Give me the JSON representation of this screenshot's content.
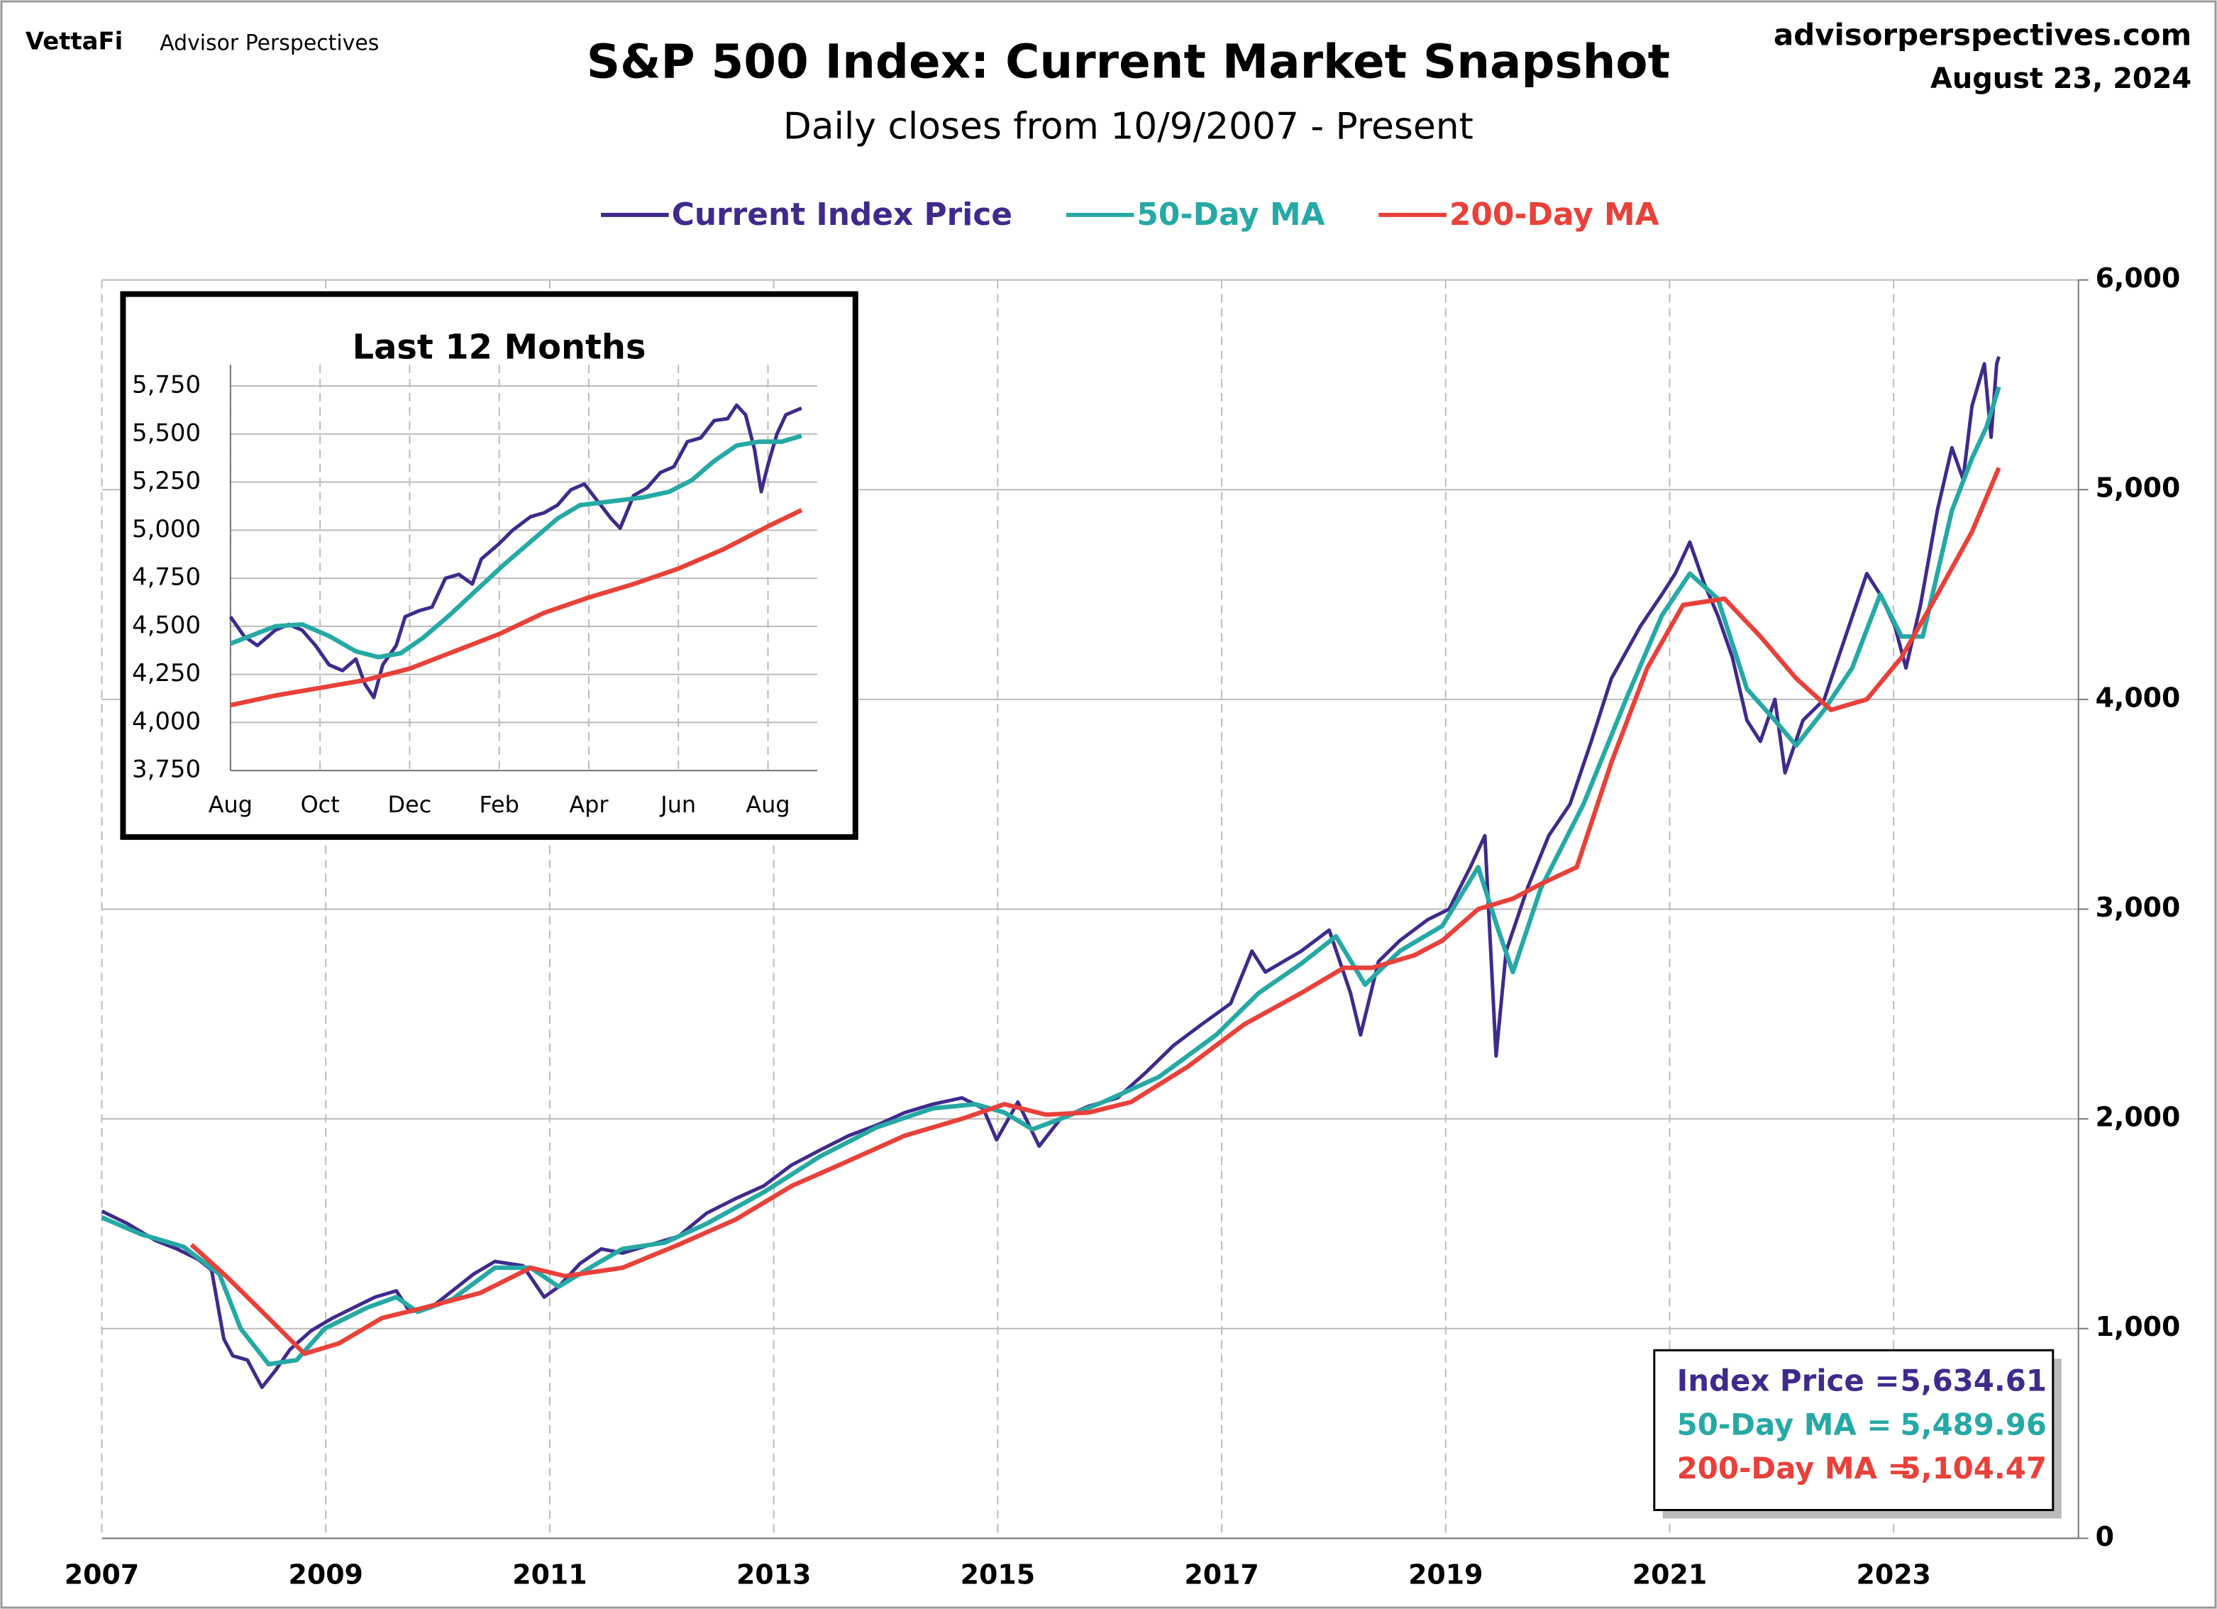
{
  "header": {
    "brand": "VettaFi",
    "brand_sub": "Advisor Perspectives",
    "site": "advisorperspectives.com",
    "date": "August 23, 2024"
  },
  "chart_data": [
    {
      "type": "line",
      "title": "S&P 500 Index: Current Market Snapshot",
      "subtitle": "Daily closes from 10/9/2007 - Present",
      "xlim": [
        2007,
        2024.65
      ],
      "xticks": [
        2007,
        2009,
        2011,
        2013,
        2015,
        2017,
        2019,
        2021,
        2023
      ],
      "ylim": [
        0,
        6000
      ],
      "yticks": [
        0,
        {
          "value": 1000,
          "label": "1,000"
        },
        {
          "value": 2000,
          "label": "2,000"
        },
        {
          "value": 3000,
          "label": "3,000"
        },
        {
          "value": 4000,
          "label": "4,000"
        },
        {
          "value": 5000,
          "label": "5,000"
        },
        {
          "value": 6000,
          "label": "6,000"
        }
      ],
      "grid": true,
      "legend": "top",
      "series": [
        {
          "name": "Current Index Price",
          "color": "#3f2a8c",
          "x": [
            2007.0,
            2007.23,
            2007.48,
            2007.67,
            2007.86,
            2007.98,
            2008.09,
            2008.17,
            2008.3,
            2008.43,
            2008.55,
            2008.68,
            2008.87,
            2009.06,
            2009.25,
            2009.44,
            2009.63,
            2009.75,
            2009.94,
            2010.13,
            2010.32,
            2010.51,
            2010.76,
            2010.95,
            2011.08,
            2011.27,
            2011.46,
            2011.65,
            2011.9,
            2012.15,
            2012.4,
            2012.66,
            2012.91,
            2013.16,
            2013.41,
            2013.67,
            2013.92,
            2014.17,
            2014.42,
            2014.68,
            2014.87,
            2014.99,
            2015.18,
            2015.37,
            2015.56,
            2015.81,
            2016.07,
            2016.32,
            2016.57,
            2016.82,
            2017.08,
            2017.27,
            2017.39,
            2017.71,
            2017.96,
            2018.15,
            2018.24,
            2018.4,
            2018.59,
            2018.84,
            2019.03,
            2019.22,
            2019.35,
            2019.45,
            2019.54,
            2019.73,
            2019.92,
            2020.11,
            2020.3,
            2020.48,
            2020.74,
            2020.93,
            2021.05,
            2021.18,
            2021.31,
            2021.43,
            2021.56,
            2021.69,
            2021.81,
            2021.94,
            2022.03,
            2022.19,
            2022.38,
            2022.57,
            2022.76,
            2022.88,
            2023.01,
            2023.11,
            2023.24,
            2023.39,
            2023.52,
            2023.62,
            2023.7,
            2023.81,
            2023.87,
            2023.92,
            2023.94
          ],
          "values": [
            1560,
            1500,
            1420,
            1380,
            1330,
            1280,
            950,
            870,
            850,
            720,
            800,
            900,
            990,
            1050,
            1100,
            1150,
            1180,
            1080,
            1100,
            1180,
            1260,
            1320,
            1300,
            1150,
            1200,
            1310,
            1380,
            1360,
            1400,
            1440,
            1550,
            1620,
            1680,
            1780,
            1850,
            1920,
            1970,
            2030,
            2070,
            2100,
            2050,
            1900,
            2080,
            1870,
            2000,
            2060,
            2100,
            2220,
            2350,
            2450,
            2550,
            2800,
            2700,
            2800,
            2900,
            2600,
            2400,
            2750,
            2850,
            2950,
            3000,
            3200,
            3350,
            2300,
            2800,
            3100,
            3350,
            3500,
            3800,
            4100,
            4350,
            4500,
            4600,
            4750,
            4550,
            4400,
            4200,
            3900,
            3800,
            4000,
            3650,
            3900,
            4000,
            4300,
            4600,
            4500,
            4350,
            4150,
            4450,
            4900,
            5200,
            5050,
            5400,
            5600,
            5250,
            5600,
            5634.61
          ]
        },
        {
          "name": "50-Day MA",
          "color": "#26a9a5",
          "x": [
            2007.0,
            2007.35,
            2007.73,
            2008.05,
            2008.24,
            2008.49,
            2008.74,
            2008.99,
            2009.37,
            2009.63,
            2009.82,
            2010.13,
            2010.51,
            2010.83,
            2011.08,
            2011.39,
            2011.65,
            2012.03,
            2012.4,
            2012.91,
            2013.41,
            2013.92,
            2014.42,
            2014.8,
            2015.06,
            2015.31,
            2015.56,
            2015.94,
            2016.44,
            2016.95,
            2017.33,
            2017.71,
            2018.02,
            2018.28,
            2018.59,
            2018.97,
            2019.29,
            2019.47,
            2019.6,
            2019.85,
            2020.23,
            2020.61,
            2020.93,
            2021.18,
            2021.43,
            2021.69,
            2021.94,
            2022.13,
            2022.38,
            2022.63,
            2022.88,
            2023.07,
            2023.26,
            2023.52,
            2023.7,
            2023.83,
            2023.94
          ],
          "values": [
            1530,
            1450,
            1390,
            1260,
            1000,
            830,
            850,
            1000,
            1100,
            1150,
            1080,
            1140,
            1290,
            1290,
            1200,
            1300,
            1380,
            1410,
            1500,
            1650,
            1820,
            1960,
            2050,
            2070,
            2030,
            1950,
            2000,
            2080,
            2200,
            2400,
            2600,
            2740,
            2870,
            2640,
            2800,
            2920,
            3200,
            2900,
            2700,
            3100,
            3500,
            4000,
            4400,
            4600,
            4480,
            4050,
            3900,
            3780,
            3950,
            4150,
            4500,
            4300,
            4300,
            4900,
            5150,
            5300,
            5489.96
          ]
        },
        {
          "name": "200-Day MA",
          "color": "#e8413a",
          "x": [
            2007.8,
            2008.11,
            2008.49,
            2008.81,
            2009.12,
            2009.5,
            2009.88,
            2010.38,
            2010.83,
            2011.14,
            2011.65,
            2012.15,
            2012.66,
            2013.16,
            2013.67,
            2014.17,
            2014.68,
            2015.06,
            2015.43,
            2015.81,
            2016.19,
            2016.7,
            2017.2,
            2017.71,
            2018.09,
            2018.34,
            2018.72,
            2018.97,
            2019.29,
            2019.6,
            2019.85,
            2020.17,
            2020.48,
            2020.8,
            2021.12,
            2021.49,
            2021.81,
            2022.13,
            2022.44,
            2022.76,
            2023.07,
            2023.39,
            2023.7,
            2023.94
          ],
          "values": [
            1400,
            1250,
            1050,
            880,
            930,
            1050,
            1100,
            1170,
            1290,
            1250,
            1290,
            1400,
            1520,
            1680,
            1800,
            1920,
            2000,
            2070,
            2020,
            2030,
            2080,
            2250,
            2450,
            2600,
            2720,
            2720,
            2780,
            2850,
            3000,
            3050,
            3120,
            3200,
            3700,
            4150,
            4450,
            4480,
            4300,
            4100,
            3950,
            4000,
            4200,
            4500,
            4800,
            5104.47
          ]
        }
      ],
      "summary_box": [
        {
          "label": "Index Price =",
          "value": "5,634.61"
        },
        {
          "label": "50-Day MA =",
          "value": "5,489.96"
        },
        {
          "label": "200-Day MA =",
          "value": "5,104.47"
        }
      ]
    },
    {
      "type": "line",
      "title": "Last 12 Months",
      "xlim": [
        0,
        13.1
      ],
      "xticks": [
        {
          "value": 0,
          "label": "Aug"
        },
        {
          "value": 2,
          "label": "Oct"
        },
        {
          "value": 4,
          "label": "Dec"
        },
        {
          "value": 6,
          "label": "Feb"
        },
        {
          "value": 8,
          "label": "Apr"
        },
        {
          "value": 10,
          "label": "Jun"
        },
        {
          "value": 12,
          "label": "Aug"
        }
      ],
      "ylim": [
        3750,
        5860
      ],
      "yticks": [
        {
          "value": 3750,
          "label": "3,750"
        },
        {
          "value": 4000,
          "label": "4,000"
        },
        {
          "value": 4250,
          "label": "4,250"
        },
        {
          "value": 4500,
          "label": "4,500"
        },
        {
          "value": 4750,
          "label": "4,750"
        },
        {
          "value": 5000,
          "label": "5,000"
        },
        {
          "value": 5250,
          "label": "5,250"
        },
        {
          "value": 5500,
          "label": "5,500"
        },
        {
          "value": 5750,
          "label": "5,750"
        }
      ],
      "grid": true,
      "series": [
        {
          "color": "#3f2a8c",
          "x": [
            0,
            0.3,
            0.6,
            1.0,
            1.3,
            1.6,
            1.9,
            2.2,
            2.5,
            2.8,
            3.0,
            3.2,
            3.4,
            3.7,
            3.9,
            4.2,
            4.5,
            4.8,
            5.1,
            5.4,
            5.6,
            6.0,
            6.3,
            6.7,
            7.0,
            7.3,
            7.6,
            7.9,
            8.2,
            8.5,
            8.7,
            9.0,
            9.3,
            9.6,
            9.9,
            10.2,
            10.5,
            10.8,
            11.1,
            11.3,
            11.5,
            11.7,
            11.85,
            12.0,
            12.2,
            12.4,
            12.6,
            12.75
          ],
          "values": [
            4550,
            4450,
            4400,
            4480,
            4510,
            4480,
            4400,
            4300,
            4270,
            4330,
            4200,
            4130,
            4300,
            4400,
            4550,
            4580,
            4600,
            4750,
            4770,
            4720,
            4850,
            4930,
            5000,
            5070,
            5090,
            5130,
            5210,
            5240,
            5150,
            5060,
            5010,
            5180,
            5220,
            5300,
            5330,
            5460,
            5480,
            5570,
            5580,
            5650,
            5600,
            5420,
            5200,
            5340,
            5500,
            5600,
            5620,
            5634.61
          ]
        },
        {
          "color": "#26a9a5",
          "x": [
            0,
            1,
            1.6,
            2.2,
            2.8,
            3.3,
            3.8,
            4.3,
            4.9,
            5.5,
            6.1,
            6.7,
            7.3,
            7.8,
            8.5,
            9.2,
            9.8,
            10.3,
            10.8,
            11.3,
            11.8,
            12.3,
            12.75
          ],
          "values": [
            4410,
            4500,
            4510,
            4450,
            4370,
            4340,
            4360,
            4440,
            4560,
            4690,
            4820,
            4940,
            5060,
            5130,
            5150,
            5170,
            5200,
            5260,
            5360,
            5440,
            5460,
            5460,
            5489.96
          ]
        },
        {
          "color": "#e8413a",
          "x": [
            0,
            1,
            2,
            3,
            4,
            5,
            6,
            7,
            8,
            9,
            10,
            11,
            12,
            12.75
          ],
          "values": [
            4090,
            4140,
            4180,
            4220,
            4280,
            4370,
            4460,
            4570,
            4650,
            4720,
            4800,
            4900,
            5020,
            5104.47
          ]
        }
      ]
    }
  ]
}
